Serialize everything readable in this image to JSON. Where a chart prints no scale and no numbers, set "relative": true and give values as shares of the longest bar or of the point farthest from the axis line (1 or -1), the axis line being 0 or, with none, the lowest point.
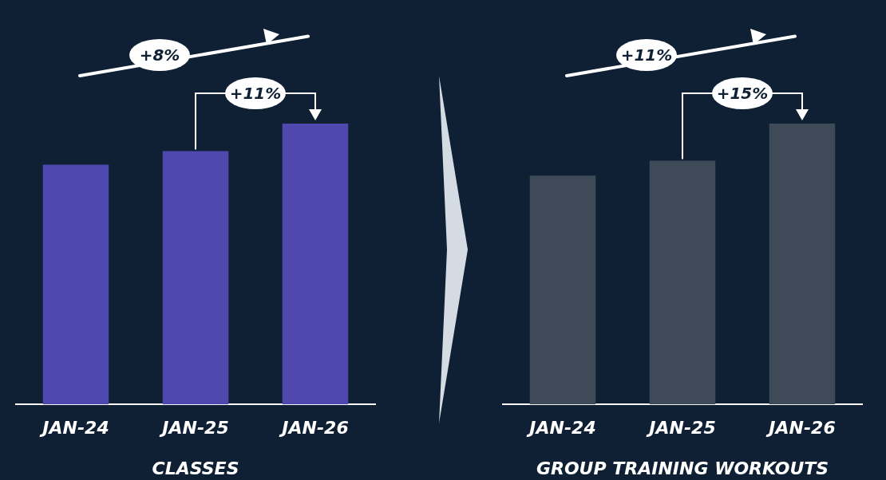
{
  "chart_data": [
    {
      "type": "bar",
      "categories": [
        "JAN-24",
        "JAN-25",
        "JAN-26"
      ],
      "values": [
        0.854,
        0.902,
        1
      ],
      "color": "#4f48ae",
      "relative": true,
      "xlabel": "CLASSES",
      "annotations": [
        "+8%",
        "+11%"
      ]
    },
    {
      "type": "bar",
      "categories": [
        "JAN-24",
        "JAN-25",
        "JAN-26"
      ],
      "values": [
        0.815,
        0.868,
        1
      ],
      "color": "#3e4a58",
      "relative": true,
      "xlabel": "GROUP TRAINING WORKOUTS",
      "annotations": [
        "+11%",
        "+15%"
      ]
    }
  ]
}
